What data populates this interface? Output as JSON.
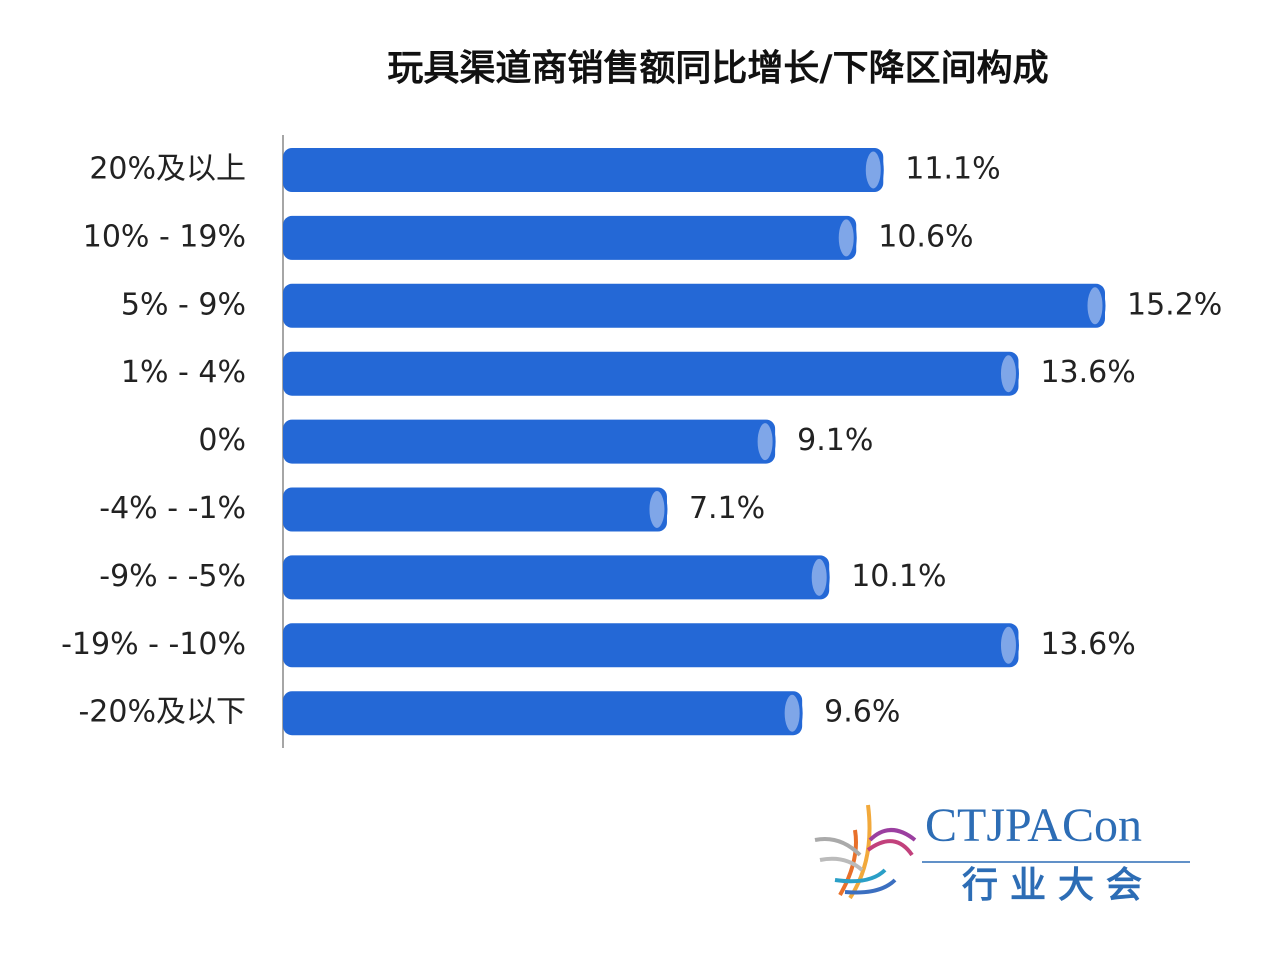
{
  "chart_data": {
    "type": "bar",
    "orientation": "horizontal",
    "title": "玩具渠道商销售额同比增长/下降区间构成",
    "categories": [
      "20%及以上",
      "10% - 19%",
      "5% - 9%",
      "1% - 4%",
      "0%",
      "-4% - -1%",
      "-9% - -5%",
      "-19% - -10%",
      "-20%及以下"
    ],
    "values": [
      11.1,
      10.6,
      15.2,
      13.6,
      9.1,
      7.1,
      10.1,
      13.6,
      9.6
    ],
    "value_labels": [
      "11.1%",
      "10.6%",
      "15.2%",
      "13.6%",
      "9.1%",
      "7.1%",
      "10.1%",
      "13.6%",
      "9.6%"
    ],
    "color": "#2468d6",
    "cap_color": "#7fa6e8"
  },
  "logo": {
    "name": "CTJPACon",
    "subtitle": "行业大会"
  }
}
